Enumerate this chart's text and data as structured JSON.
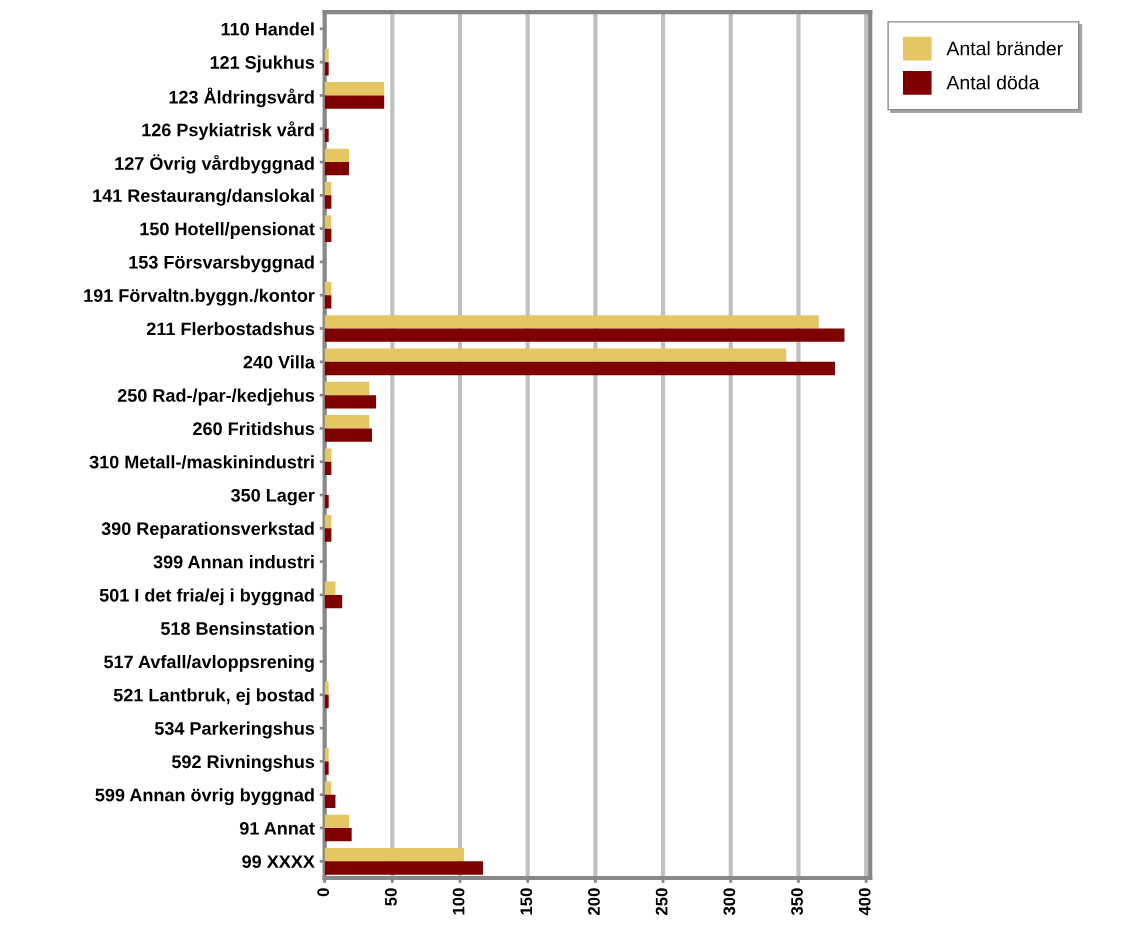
{
  "chart_data": {
    "type": "bar",
    "orientation": "horizontal",
    "categories": [
      "110 Handel",
      "121 Sjukhus",
      "123 Åldringsvård",
      "126 Psykiatrisk vård",
      "127 Övrig vårdbyggnad",
      "141 Restaurang/danslokal",
      "150 Hotell/pensionat",
      "153 Försvarsbyggnad",
      "191 Förvaltn.byggn./kontor",
      "211 Flerbostadshus",
      "240 Villa",
      "250 Rad-/par-/kedjehus",
      "260 Fritidshus",
      "310 Metall-/maskinindustri",
      "350 Lager",
      "390 Reparationsverkstad",
      "399 Annan industri",
      "501 I det fria/ej i byggnad",
      "518 Bensinstation",
      "517 Avfall/avloppsrening",
      "521 Lantbruk, ej bostad",
      "534 Parkeringshus",
      "592 Rivningshus",
      "599 Annan övrig byggnad",
      "91 Annat",
      "99 XXXX"
    ],
    "series": [
      {
        "name": "Antal bränder",
        "color": "#e6c662",
        "values": [
          0,
          3,
          44,
          0,
          18,
          5,
          5,
          0,
          5,
          365,
          341,
          33,
          33,
          5,
          0,
          5,
          0,
          8,
          0,
          0,
          3,
          0,
          3,
          5,
          18,
          103
        ]
      },
      {
        "name": "Antal döda",
        "color": "#7f0000",
        "values": [
          0,
          3,
          44,
          3,
          18,
          5,
          5,
          0,
          5,
          384,
          377,
          38,
          35,
          5,
          3,
          5,
          0,
          13,
          0,
          0,
          3,
          0,
          3,
          8,
          20,
          117
        ]
      }
    ],
    "xlim": [
      0,
      403
    ],
    "xticks": [
      0,
      50,
      100,
      150,
      200,
      250,
      300,
      350,
      400
    ],
    "grid": "x",
    "legend": "top right"
  }
}
